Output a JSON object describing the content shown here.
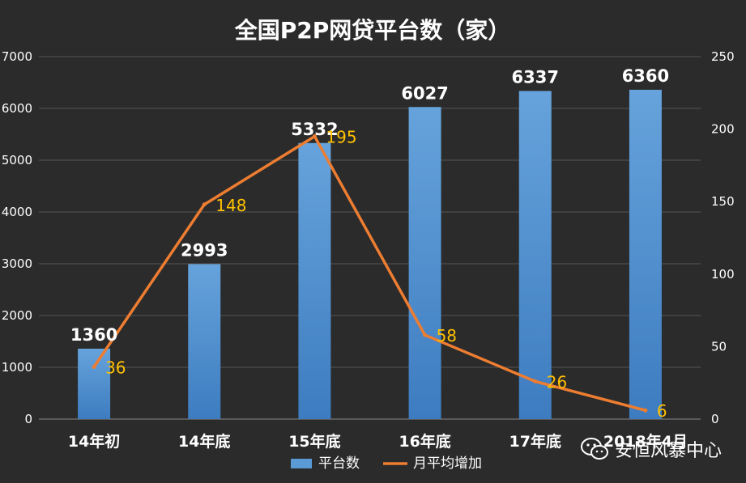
{
  "chart_data": {
    "type": "bar+line",
    "title": "全国P2P网贷平台数（家）",
    "categories": [
      "14年初",
      "14年底",
      "15年底",
      "16年底",
      "17年底",
      "2018年4月"
    ],
    "series": [
      {
        "name": "平台数",
        "type": "bar",
        "axis": "left",
        "color": "#5b9bd5",
        "values": [
          1360,
          2993,
          5332,
          6027,
          6337,
          6360
        ]
      },
      {
        "name": "月平均增加",
        "type": "line",
        "axis": "right",
        "color": "#ed7d31",
        "values": [
          36,
          148,
          195,
          58,
          26,
          6
        ]
      }
    ],
    "y_left": {
      "min": 0,
      "max": 7000,
      "ticks": [
        0,
        1000,
        2000,
        3000,
        4000,
        5000,
        6000,
        7000
      ]
    },
    "y_right": {
      "min": 0,
      "max": 250,
      "ticks": [
        0,
        50,
        100,
        150,
        200,
        250
      ]
    },
    "grid": true,
    "legend_position": "bottom",
    "bar_label_color": "#ffffff",
    "line_label_color": "#ffc000"
  },
  "watermark": {
    "text": "安恒风暴中心",
    "icon": "wechat-icon"
  }
}
